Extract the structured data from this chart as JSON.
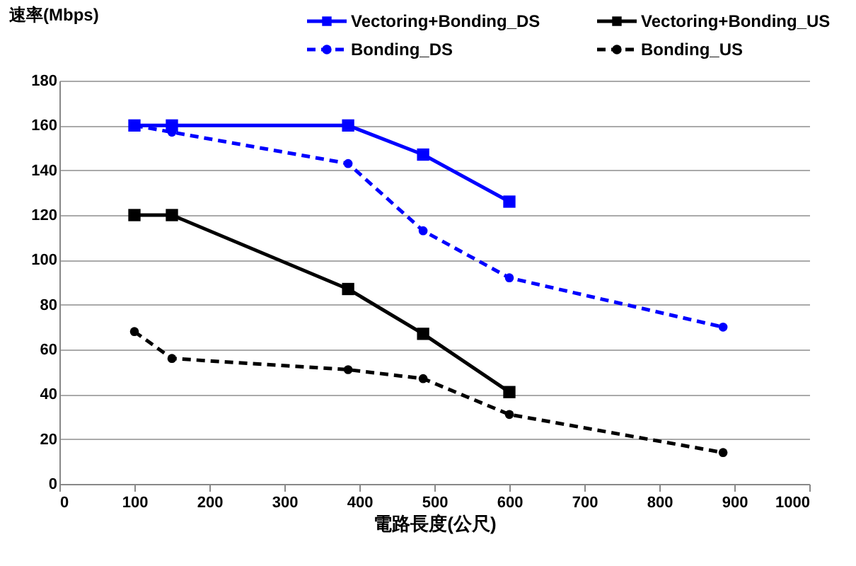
{
  "chart_data": {
    "type": "line",
    "xlabel": "電路長度(公尺)",
    "ylabel": "速率(Mbps)",
    "xlim": [
      0,
      1000
    ],
    "xticks": [
      0,
      100,
      200,
      300,
      400,
      500,
      600,
      700,
      800,
      900,
      1000
    ],
    "ylim": [
      0,
      180
    ],
    "yticks": [
      0,
      20,
      40,
      60,
      80,
      100,
      120,
      140,
      160,
      180
    ],
    "grid": "y",
    "legend": "top",
    "series": [
      {
        "name": "Vectoring+Bonding_DS",
        "color": "#0000ff",
        "x": [
          100,
          150,
          385,
          485,
          600
        ],
        "values": [
          160,
          160,
          160,
          147,
          126
        ],
        "marker": "square",
        "line_style": "solid"
      },
      {
        "name": "Vectoring+Bonding_US",
        "color": "#000000",
        "x": [
          100,
          150,
          385,
          485,
          600
        ],
        "values": [
          120,
          120,
          87,
          67,
          41
        ],
        "marker": "square",
        "line_style": "solid"
      },
      {
        "name": "Bonding_DS",
        "color": "#0000ff",
        "x": [
          100,
          150,
          385,
          485,
          600,
          885
        ],
        "values": [
          160,
          157,
          143,
          113,
          92,
          70
        ],
        "marker": "circle",
        "line_style": "dashed"
      },
      {
        "name": "Bonding_US",
        "color": "#000000",
        "x": [
          100,
          150,
          385,
          485,
          600,
          885
        ],
        "values": [
          68,
          56,
          51,
          47,
          31,
          14
        ],
        "marker": "circle",
        "line_style": "dashed"
      }
    ]
  }
}
